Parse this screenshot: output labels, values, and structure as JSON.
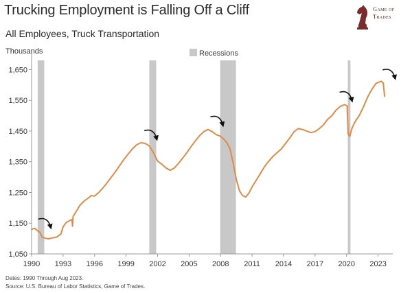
{
  "header": {
    "title": "Trucking Employment is Falling Off a Cliff",
    "subtitle": "All Employees, Truck Transportation"
  },
  "logo": {
    "line1": "Game of",
    "line2": "Trades",
    "icon": "chess-knight-icon"
  },
  "footer": {
    "dates": "Dates: 1990 Through Aug 2023.",
    "source": "Source: U.S. Bureau of Labor Statistics, Game of Trades."
  },
  "colors": {
    "line": "#e08a45",
    "recession": "#c8c8c8",
    "arrow": "#111111",
    "axis": "#999999"
  },
  "chart_data": {
    "type": "line",
    "title": "Trucking Employment is Falling Off a Cliff",
    "subtitle": "All Employees, Truck Transportation",
    "xlabel": "",
    "ylabel": "Thousands",
    "xlim": [
      1990,
      2024.4
    ],
    "ylim": [
      1050,
      1680
    ],
    "x_ticks": [
      1990,
      1993,
      1996,
      1999,
      2002,
      2005,
      2008,
      2011,
      2014,
      2017,
      2020,
      2023
    ],
    "y_ticks": [
      1050,
      1150,
      1250,
      1350,
      1450,
      1550,
      1650
    ],
    "y_tick_labels": [
      "1,050",
      "1,150",
      "1,250",
      "1,350",
      "1,450",
      "1,550",
      "1,650"
    ],
    "grid": false,
    "legend": {
      "position": "top-center",
      "entries": [
        {
          "label": "Recessions",
          "type": "shaded-band"
        }
      ]
    },
    "recessions": [
      {
        "start": 1990.58,
        "end": 1991.21
      },
      {
        "start": 2001.21,
        "end": 2001.87
      },
      {
        "start": 2007.96,
        "end": 2009.46
      },
      {
        "start": 2020.12,
        "end": 2020.37
      }
    ],
    "series": [
      {
        "x": [
          1990.0,
          1990.3,
          1990.55,
          1990.8,
          1991.0,
          1991.3,
          1991.6,
          1992.0,
          1992.4,
          1992.8,
          1993.0,
          1993.3,
          1993.6,
          1993.85,
          1993.9,
          1993.95,
          1994.2,
          1994.6,
          1995.0,
          1995.4,
          1995.7,
          1996.0,
          1996.4,
          1996.8,
          1997.2,
          1997.6,
          1998.0,
          1998.4,
          1998.8,
          1999.2,
          1999.6,
          2000.0,
          2000.4,
          2000.8,
          2001.2,
          2001.6,
          2002.0,
          2002.4,
          2002.8,
          2003.2,
          2003.6,
          2004.0,
          2004.4,
          2004.8,
          2005.2,
          2005.6,
          2006.0,
          2006.4,
          2006.8,
          2007.2,
          2007.6,
          2008.0,
          2008.3,
          2008.6,
          2008.9,
          2009.2,
          2009.5,
          2009.8,
          2010.1,
          2010.4,
          2010.7,
          2011.0,
          2011.4,
          2011.8,
          2012.2,
          2012.6,
          2013.0,
          2013.4,
          2013.8,
          2014.2,
          2014.6,
          2015.0,
          2015.4,
          2015.8,
          2016.2,
          2016.6,
          2017.0,
          2017.4,
          2017.8,
          2018.2,
          2018.6,
          2019.0,
          2019.4,
          2019.8,
          2020.05,
          2020.15,
          2020.3,
          2020.5,
          2020.8,
          2021.2,
          2021.6,
          2022.0,
          2022.4,
          2022.8,
          2023.0,
          2023.3,
          2023.5,
          2023.62
        ],
        "y": [
          1130,
          1133,
          1126,
          1120,
          1105,
          1101,
          1099,
          1102,
          1105,
          1115,
          1138,
          1152,
          1158,
          1162,
          1140,
          1172,
          1185,
          1208,
          1222,
          1232,
          1240,
          1238,
          1250,
          1265,
          1282,
          1300,
          1318,
          1338,
          1358,
          1375,
          1392,
          1405,
          1412,
          1410,
          1402,
          1380,
          1352,
          1342,
          1330,
          1322,
          1330,
          1345,
          1362,
          1380,
          1400,
          1418,
          1435,
          1448,
          1455,
          1448,
          1438,
          1433,
          1424,
          1412,
          1392,
          1345,
          1292,
          1255,
          1240,
          1235,
          1248,
          1268,
          1290,
          1312,
          1335,
          1352,
          1368,
          1380,
          1392,
          1410,
          1428,
          1448,
          1458,
          1455,
          1450,
          1445,
          1448,
          1458,
          1470,
          1488,
          1500,
          1518,
          1530,
          1536,
          1532,
          1440,
          1432,
          1458,
          1480,
          1500,
          1528,
          1560,
          1585,
          1605,
          1608,
          1612,
          1606,
          1563
        ]
      }
    ],
    "annotations": [
      {
        "type": "arrow",
        "at_x": 1990.9,
        "at_y": 1132,
        "direction": "down-right"
      },
      {
        "type": "arrow",
        "at_x": 2001.0,
        "at_y": 1420,
        "direction": "down-right"
      },
      {
        "type": "arrow",
        "at_x": 2007.3,
        "at_y": 1465,
        "direction": "down-right"
      },
      {
        "type": "arrow",
        "at_x": 2019.6,
        "at_y": 1545,
        "direction": "down-right"
      },
      {
        "type": "arrow",
        "at_x": 2023.7,
        "at_y": 1618,
        "direction": "down-right"
      }
    ]
  }
}
